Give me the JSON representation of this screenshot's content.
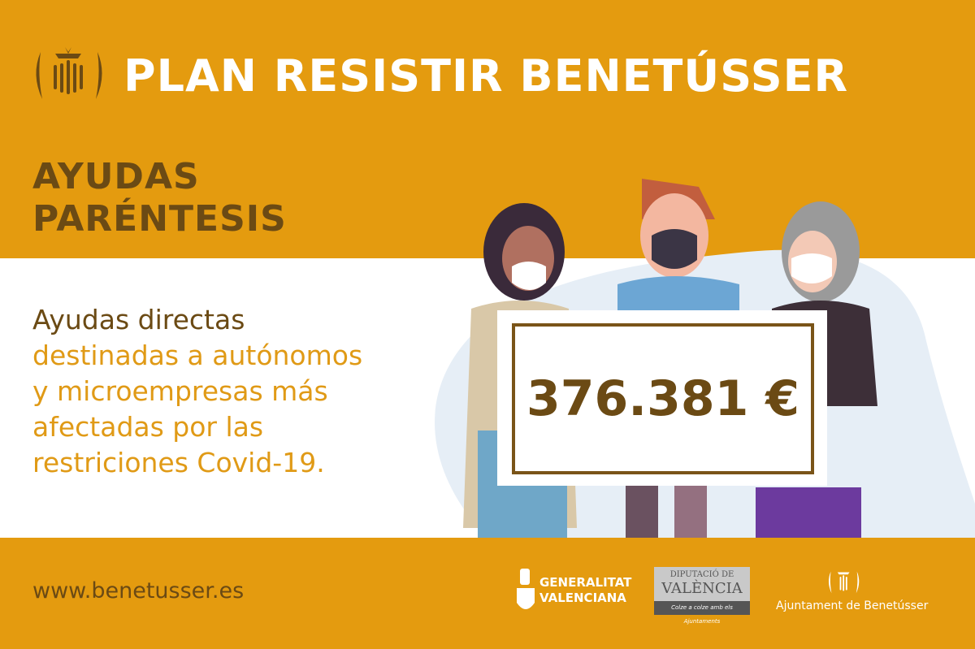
{
  "header": {
    "title": "PLAN RESISTIR BENETÚSSER",
    "logo_icon": "benetusser-crest-icon"
  },
  "subtitle": {
    "line1": "AYUDAS",
    "line2": "PARÉNTESIS"
  },
  "description": {
    "line1": "Ayudas directas",
    "line2": "destinadas a autónomos",
    "line3": "y microempresas más",
    "line4": "afectadas por las",
    "line5": "restriciones Covid-19."
  },
  "sign": {
    "amount": "376.381 €"
  },
  "footer": {
    "url": "www.benetusser.es",
    "generalitat": {
      "line1": "GENERALITAT",
      "line2": "VALENCIANA"
    },
    "diputacio": {
      "line1": "DIPUTACIÓ DE",
      "line2": "VALÈNCIA",
      "tagline": "Colze a colze amb els Ajuntaments"
    },
    "ajuntament": "Ajuntament de Benetússer"
  },
  "colors": {
    "background": "#E49B0F",
    "brown": "#6B4A14",
    "accent_text": "#E09A16",
    "white": "#FFFFFF"
  }
}
